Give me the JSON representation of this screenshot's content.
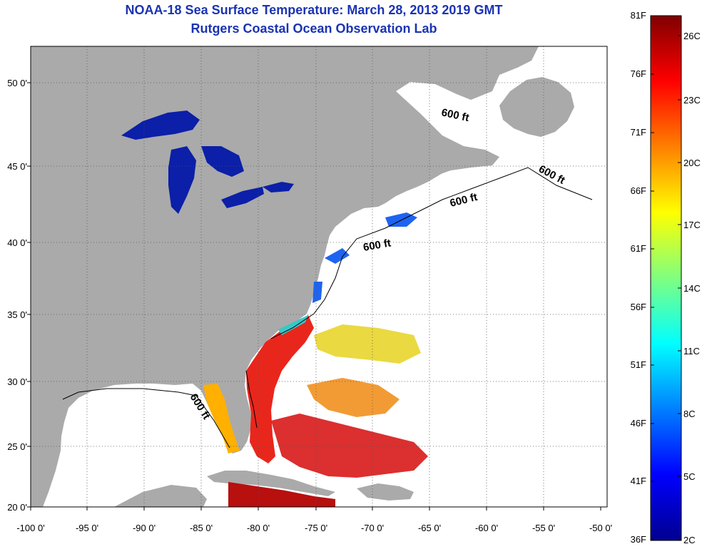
{
  "header": {
    "title": "NOAA-18 Sea Surface Temperature:  March 28, 2013 2019 GMT",
    "subtitle": "Rutgers Coastal Ocean Observation Lab"
  },
  "map": {
    "lon_labels": [
      "-100 0'",
      "-95 0'",
      "-90 0'",
      "-85 0'",
      "-80 0'",
      "-75 0'",
      "-70 0'",
      "-65 0'",
      "-60 0'",
      "-55 0'",
      "-50 0'"
    ],
    "lat_labels": [
      "50 0'",
      "45 0'",
      "40 0'",
      "35 0'",
      "30 0'",
      "25 0'",
      "20 0'"
    ],
    "isobath_labels": [
      "600 ft",
      "600 ft",
      "600 ft",
      "600 ft",
      "600 ft"
    ],
    "land_color": "#aaaaaa",
    "water_color": "#ffffff"
  },
  "colorbar": {
    "f_labels": [
      "81F",
      "76F",
      "71F",
      "66F",
      "61F",
      "56F",
      "51F",
      "46F",
      "41F",
      "36F"
    ],
    "c_labels": [
      "26C",
      "23C",
      "20C",
      "17C",
      "14C",
      "11C",
      "8C",
      "5C",
      "2C"
    ]
  }
}
